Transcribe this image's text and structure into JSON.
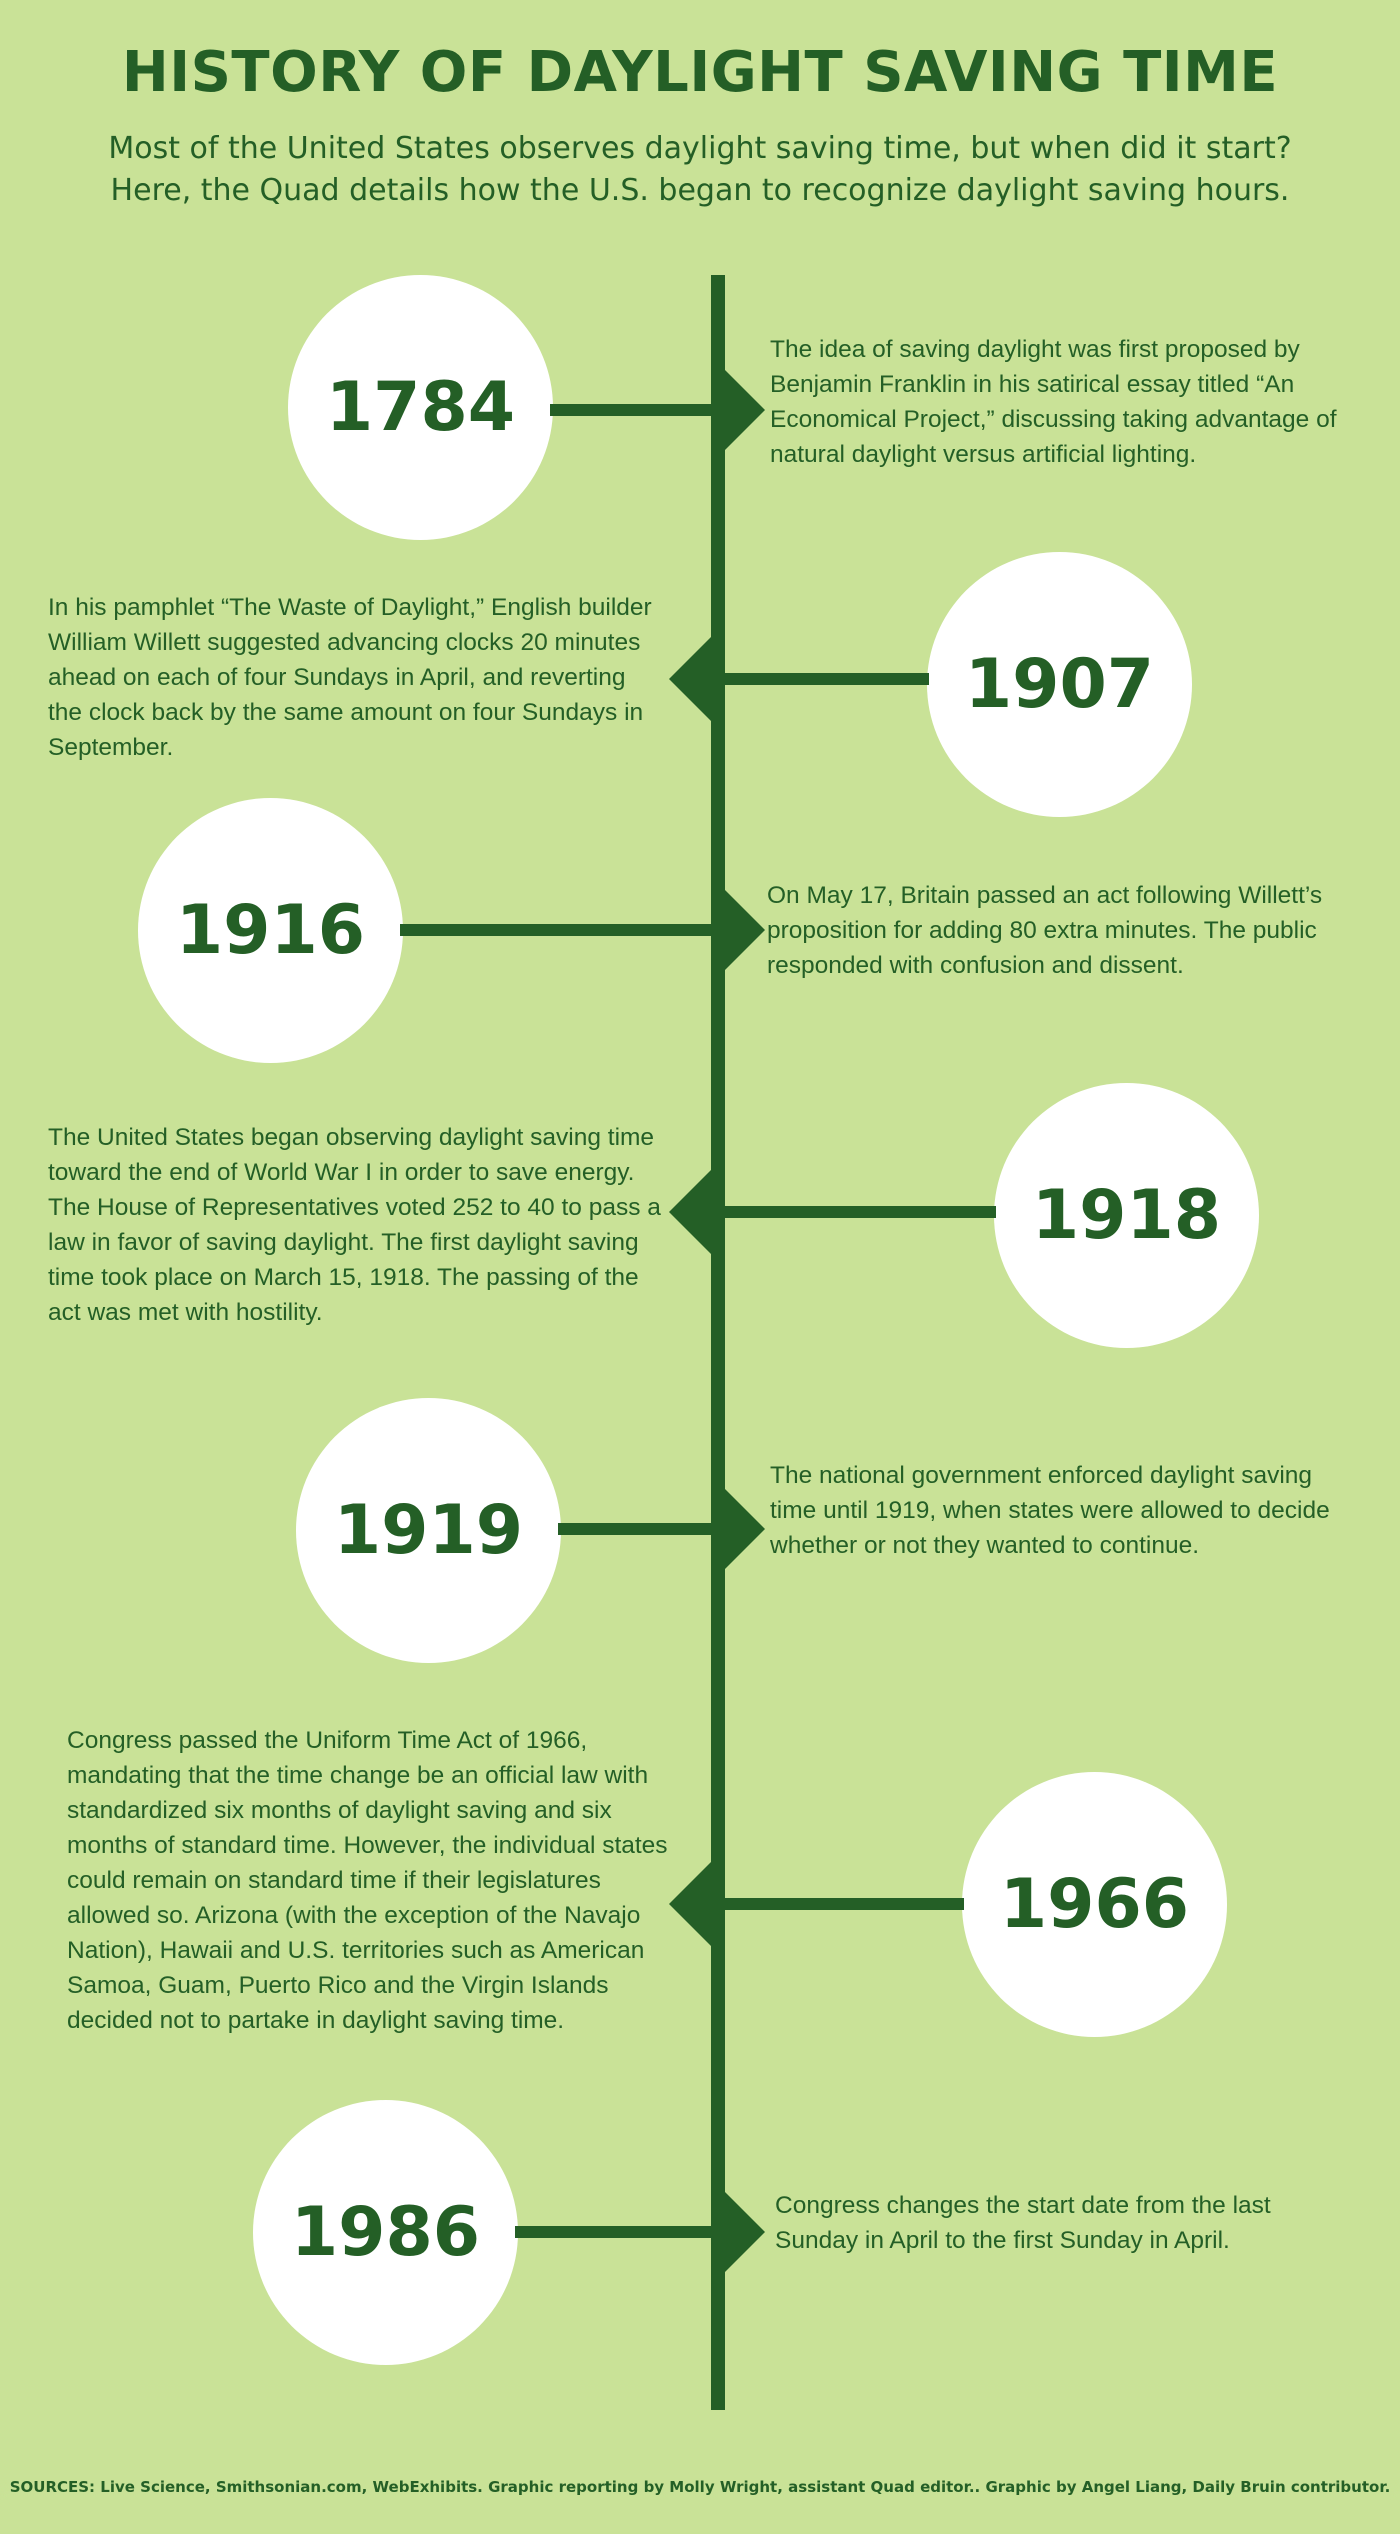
{
  "title": "HISTORY OF DAYLIGHT SAVING TIME",
  "subtitle_line1": "Most of the United States observes daylight saving time, but when did it start?",
  "subtitle_line2": "Here, the Quad details how the U.S. began to recognize daylight saving hours.",
  "events": [
    {
      "year": "1784",
      "side": "left",
      "text": "The idea of saving daylight was first proposed by Benjamin Franklin in his satirical essay titled “An Economical Project,” discussing taking advantage of natural daylight versus artificial lighting."
    },
    {
      "year": "1907",
      "side": "right",
      "text": "In his pamphlet “The Waste of Daylight,” English builder William Willett suggested advancing clocks 20 minutes ahead on each of four Sundays in April, and reverting the clock back by the same amount on four Sundays in September."
    },
    {
      "year": "1916",
      "side": "left",
      "text": "On May 17, Britain passed an act following Willett’s proposition for adding 80 extra minutes. The public responded with confusion and dissent."
    },
    {
      "year": "1918",
      "side": "right",
      "text": "The United States began observing daylight saving time toward the end of World War I in order to save energy. The House of Representatives voted 252 to 40 to pass a law in favor of saving daylight. The first daylight saving time took place on March 15, 1918. The passing of the act was met with hostility."
    },
    {
      "year": "1919",
      "side": "left",
      "text": "The national government enforced daylight saving time until 1919, when states were allowed to decide whether or not they wanted to continue."
    },
    {
      "year": "1966",
      "side": "right",
      "text": "Congress passed the Uniform Time Act of 1966, mandating that the time change be an official law with standardized six months of daylight saving and six months of standard time. However, the individual states could remain on standard time if their legislatures allowed so. Arizona (with the exception of the Navajo Nation), Hawaii and U.S. territories such as American Samoa, Guam, Puerto Rico and the Virgin Islands decided not to partake in daylight saving time."
    },
    {
      "year": "1986",
      "side": "left",
      "text": "Congress changes the start date from the last Sunday in April to the first Sunday in April."
    }
  ],
  "sources": "SOURCES: Live Science, Smithsonian.com, WebExhibits. Graphic reporting by Molly Wright, assistant Quad editor.. Graphic by Angel Liang, Daily Bruin contributor.",
  "colors": {
    "background": "#c9e297",
    "primary": "#245f26",
    "circle": "#ffffff"
  }
}
